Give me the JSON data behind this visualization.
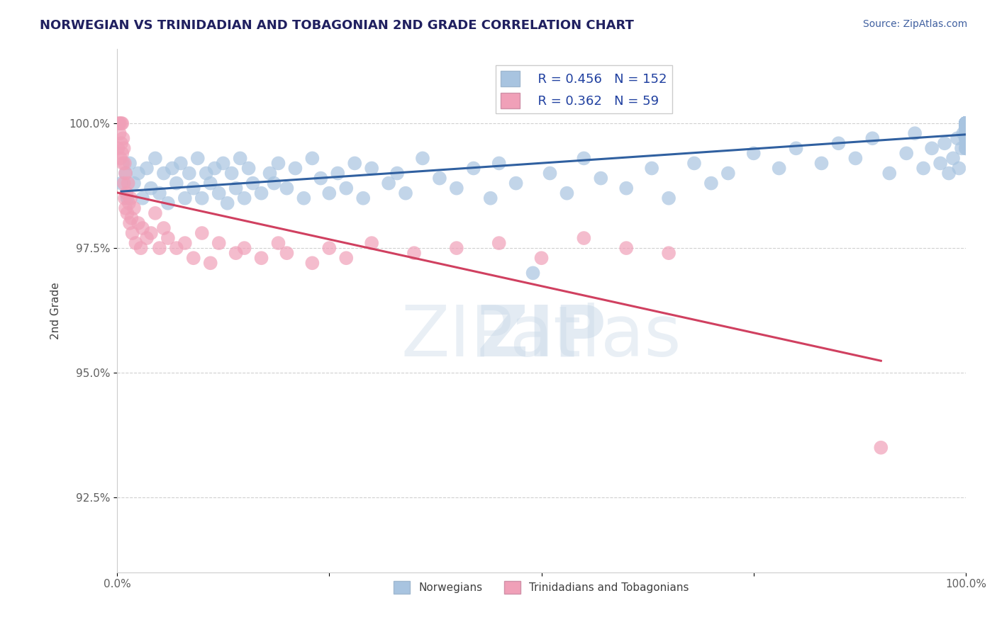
{
  "title": "NORWEGIAN VS TRINIDADIAN AND TOBAGONIAN 2ND GRADE CORRELATION CHART",
  "source_text": "Source: ZipAtlas.com",
  "xlabel": "",
  "ylabel": "2nd Grade",
  "xlim": [
    0.0,
    100.0
  ],
  "ylim": [
    91.0,
    101.5
  ],
  "yticks": [
    92.5,
    95.0,
    97.5,
    100.0
  ],
  "ytick_labels": [
    "92.5%",
    "95.0%",
    "97.5%",
    "100.0%"
  ],
  "xticks": [
    0.0,
    25.0,
    50.0,
    75.0,
    100.0
  ],
  "xtick_labels": [
    "0.0%",
    "",
    "",
    "",
    "100.0%"
  ],
  "r_norwegian": 0.456,
  "n_norwegian": 152,
  "r_trinidadian": 0.362,
  "n_trinidadian": 59,
  "blue_color": "#a8c4e0",
  "pink_color": "#f0a0b8",
  "blue_line_color": "#3060a0",
  "pink_line_color": "#d04060",
  "legend_blue_color": "#a8c4e0",
  "legend_pink_color": "#f0a0b8",
  "watermark_color": "#c8d8e8",
  "title_color": "#202060",
  "axis_label_color": "#404040",
  "tick_color": "#606060",
  "grid_color": "#d0d0d0",
  "background_color": "#ffffff",
  "blue_scatter_x": [
    0.5,
    1.0,
    1.2,
    1.5,
    2.0,
    2.5,
    3.0,
    3.5,
    4.0,
    4.5,
    5.0,
    5.5,
    6.0,
    6.5,
    7.0,
    7.5,
    8.0,
    8.5,
    9.0,
    9.5,
    10.0,
    10.5,
    11.0,
    11.5,
    12.0,
    12.5,
    13.0,
    13.5,
    14.0,
    14.5,
    15.0,
    15.5,
    16.0,
    17.0,
    18.0,
    18.5,
    19.0,
    20.0,
    21.0,
    22.0,
    23.0,
    24.0,
    25.0,
    26.0,
    27.0,
    28.0,
    29.0,
    30.0,
    32.0,
    33.0,
    34.0,
    36.0,
    38.0,
    40.0,
    42.0,
    44.0,
    45.0,
    47.0,
    49.0,
    51.0,
    53.0,
    55.0,
    57.0,
    60.0,
    63.0,
    65.0,
    68.0,
    70.0,
    72.0,
    75.0,
    78.0,
    80.0,
    83.0,
    85.0,
    87.0,
    89.0,
    91.0,
    93.0,
    94.0,
    95.0,
    96.0,
    97.0,
    97.5,
    98.0,
    98.5,
    99.0,
    99.2,
    99.5,
    99.7,
    100.0,
    100.0,
    100.0,
    100.0,
    100.0,
    100.0,
    100.0,
    100.0,
    100.0,
    100.0,
    100.0,
    100.0,
    100.0,
    100.0,
    100.0,
    100.0,
    100.0,
    100.0,
    100.0,
    100.0,
    100.0,
    100.0,
    100.0,
    100.0,
    100.0,
    100.0,
    100.0,
    100.0,
    100.0,
    100.0,
    100.0,
    100.0,
    100.0,
    100.0,
    100.0,
    100.0,
    100.0,
    100.0,
    100.0,
    100.0,
    100.0,
    100.0,
    100.0,
    100.0,
    100.0,
    100.0,
    100.0,
    100.0,
    100.0,
    100.0,
    100.0,
    100.0,
    100.0,
    100.0,
    100.0,
    100.0,
    100.0,
    100.0,
    100.0,
    100.0,
    100.0,
    100.0
  ],
  "blue_scatter_y": [
    98.8,
    99.0,
    98.5,
    99.2,
    98.8,
    99.0,
    98.5,
    99.1,
    98.7,
    99.3,
    98.6,
    99.0,
    98.4,
    99.1,
    98.8,
    99.2,
    98.5,
    99.0,
    98.7,
    99.3,
    98.5,
    99.0,
    98.8,
    99.1,
    98.6,
    99.2,
    98.4,
    99.0,
    98.7,
    99.3,
    98.5,
    99.1,
    98.8,
    98.6,
    99.0,
    98.8,
    99.2,
    98.7,
    99.1,
    98.5,
    99.3,
    98.9,
    98.6,
    99.0,
    98.7,
    99.2,
    98.5,
    99.1,
    98.8,
    99.0,
    98.6,
    99.3,
    98.9,
    98.7,
    99.1,
    98.5,
    99.2,
    98.8,
    97.0,
    99.0,
    98.6,
    99.3,
    98.9,
    98.7,
    99.1,
    98.5,
    99.2,
    98.8,
    99.0,
    99.4,
    99.1,
    99.5,
    99.2,
    99.6,
    99.3,
    99.7,
    99.0,
    99.4,
    99.8,
    99.1,
    99.5,
    99.2,
    99.6,
    99.0,
    99.3,
    99.7,
    99.1,
    99.5,
    99.8,
    100.0,
    100.0,
    99.8,
    100.0,
    99.5,
    100.0,
    99.7,
    100.0,
    99.8,
    100.0,
    99.5,
    100.0,
    99.7,
    100.0,
    99.9,
    100.0,
    99.6,
    100.0,
    99.8,
    100.0,
    100.0,
    99.7,
    100.0,
    99.9,
    100.0,
    99.8,
    100.0,
    100.0,
    99.9,
    100.0,
    100.0,
    99.8,
    100.0,
    100.0,
    100.0,
    100.0,
    99.9,
    100.0,
    100.0,
    99.9,
    100.0,
    100.0,
    100.0,
    100.0,
    99.9,
    100.0,
    100.0,
    99.8,
    100.0,
    100.0,
    100.0,
    100.0,
    100.0,
    100.0,
    100.0,
    100.0,
    100.0,
    100.0,
    100.0,
    100.0,
    100.0,
    100.0
  ],
  "pink_scatter_x": [
    0.1,
    0.2,
    0.3,
    0.3,
    0.4,
    0.5,
    0.5,
    0.6,
    0.6,
    0.7,
    0.7,
    0.8,
    0.8,
    0.9,
    0.9,
    1.0,
    1.0,
    1.1,
    1.2,
    1.3,
    1.4,
    1.5,
    1.6,
    1.7,
    1.8,
    2.0,
    2.2,
    2.5,
    2.8,
    3.0,
    3.5,
    4.0,
    4.5,
    5.0,
    5.5,
    6.0,
    7.0,
    8.0,
    9.0,
    10.0,
    11.0,
    12.0,
    14.0,
    15.0,
    17.0,
    19.0,
    20.0,
    23.0,
    25.0,
    27.0,
    30.0,
    35.0,
    40.0,
    45.0,
    50.0,
    55.0,
    60.0,
    65.0,
    90.0
  ],
  "pink_scatter_y": [
    99.5,
    100.0,
    99.8,
    100.0,
    99.3,
    99.6,
    100.0,
    99.4,
    100.0,
    99.2,
    99.7,
    98.8,
    99.5,
    98.5,
    99.2,
    98.3,
    99.0,
    98.6,
    98.2,
    98.8,
    98.4,
    98.0,
    98.5,
    98.1,
    97.8,
    98.3,
    97.6,
    98.0,
    97.5,
    97.9,
    97.7,
    97.8,
    98.2,
    97.5,
    97.9,
    97.7,
    97.5,
    97.6,
    97.3,
    97.8,
    97.2,
    97.6,
    97.4,
    97.5,
    97.3,
    97.6,
    97.4,
    97.2,
    97.5,
    97.3,
    97.6,
    97.4,
    97.5,
    97.6,
    97.3,
    97.7,
    97.5,
    97.4,
    93.5
  ]
}
